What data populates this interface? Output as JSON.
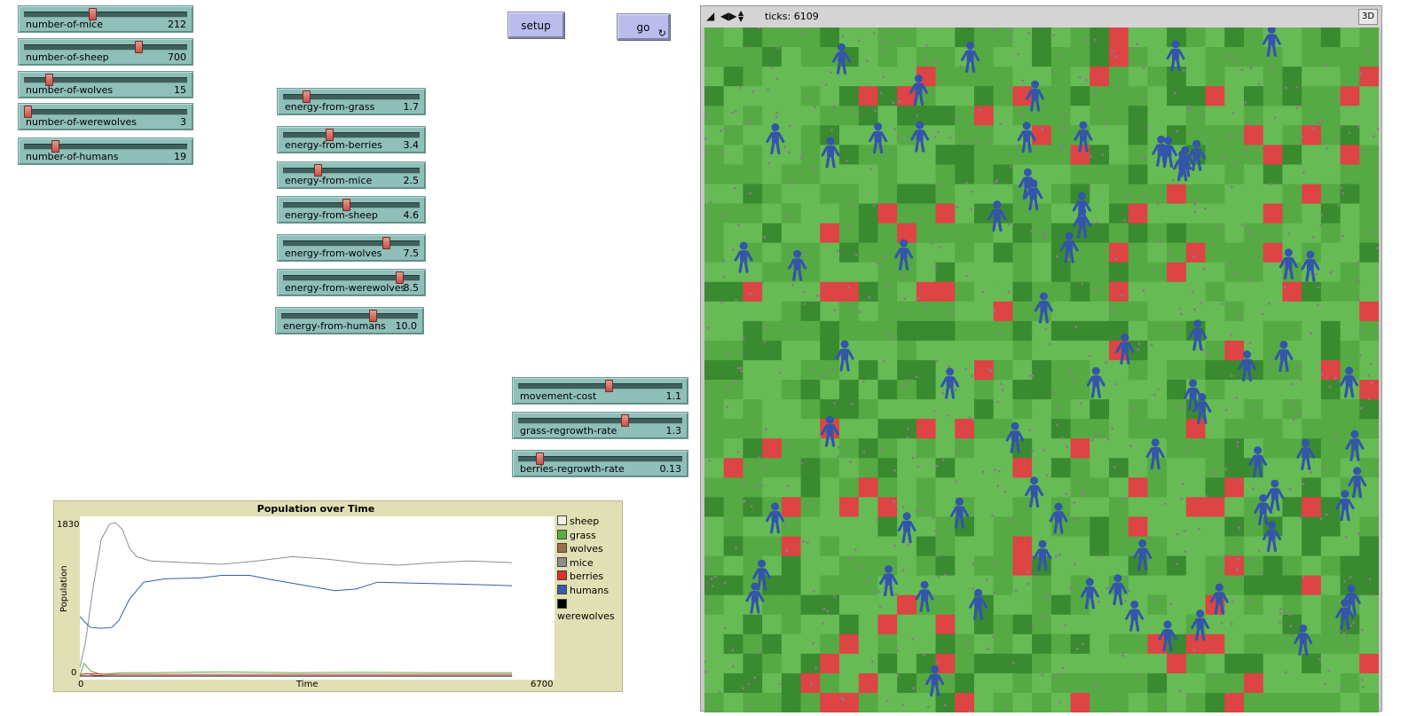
{
  "sliders_left": [
    {
      "name": "number-of-mice",
      "value": "212",
      "frac": 0.42
    },
    {
      "name": "number-of-sheep",
      "value": "700",
      "frac": 0.7
    },
    {
      "name": "number-of-wolves",
      "value": "15",
      "frac": 0.15
    },
    {
      "name": "number-of-werewolves",
      "value": "3",
      "frac": 0.02
    },
    {
      "name": "number-of-humans",
      "value": "19",
      "frac": 0.19
    }
  ],
  "sliders_energy": [
    {
      "name": "energy-from-grass",
      "value": "1.7",
      "frac": 0.17
    },
    {
      "name": "energy-from-berries",
      "value": "3.4",
      "frac": 0.34
    },
    {
      "name": "energy-from-mice",
      "value": "2.5",
      "frac": 0.25
    },
    {
      "name": "energy-from-sheep",
      "value": "4.6",
      "frac": 0.46
    },
    {
      "name": "energy-from-wolves",
      "value": "7.5",
      "frac": 0.75
    },
    {
      "name": "energy-from-werewolves",
      "value": "8.5",
      "frac": 0.85
    },
    {
      "name": "energy-from-humans",
      "value": "10.0",
      "frac": 0.67
    }
  ],
  "sliders_env": [
    {
      "name": "movement-cost",
      "value": "1.1",
      "frac": 0.55
    },
    {
      "name": "grass-regrowth-rate",
      "value": "1.3",
      "frac": 0.65
    },
    {
      "name": "berries-regrowth-rate",
      "value": "0.13",
      "frac": 0.13
    }
  ],
  "buttons": {
    "setup": "setup",
    "go": "go",
    "go_icon": "forever-loop-icon"
  },
  "view": {
    "ticks_label": "ticks: 6109",
    "three_d": "3D",
    "colors": {
      "grass_light": "#66bb55",
      "grass_mid": "#55aa44",
      "grass_dark": "#3a8a30",
      "berries": "#dd4444",
      "humans": "#3355aa",
      "mice": "#8a7a8a"
    }
  },
  "chart_data": {
    "type": "line",
    "title": "Population over Time",
    "xlabel": "Time",
    "ylabel": "Population",
    "xlim": [
      0,
      6700
    ],
    "ylim": [
      0,
      1830
    ],
    "x_tick_labels": [
      "0",
      "6700"
    ],
    "y_tick_labels": [
      "0",
      "1830"
    ],
    "grid": false,
    "legend": "right",
    "series": [
      {
        "name": "sheep",
        "color": "#eeeeee",
        "points": [
          [
            0,
            0
          ],
          [
            6100,
            0
          ]
        ]
      },
      {
        "name": "grass",
        "color": "#59b03c",
        "points": [
          [
            0,
            0
          ],
          [
            60,
            150
          ],
          [
            150,
            60
          ],
          [
            300,
            20
          ],
          [
            600,
            40
          ],
          [
            1000,
            40
          ],
          [
            2000,
            50
          ],
          [
            3000,
            40
          ],
          [
            4000,
            45
          ],
          [
            5000,
            40
          ],
          [
            6100,
            40
          ]
        ]
      },
      {
        "name": "wolves",
        "color": "#9d6e48",
        "points": [
          [
            0,
            20
          ],
          [
            100,
            30
          ],
          [
            200,
            10
          ],
          [
            400,
            0
          ],
          [
            6100,
            0
          ]
        ]
      },
      {
        "name": "mice",
        "color": "#8d8d8d",
        "points": [
          [
            0,
            100
          ],
          [
            80,
            400
          ],
          [
            180,
            1000
          ],
          [
            300,
            1600
          ],
          [
            420,
            1780
          ],
          [
            500,
            1800
          ],
          [
            600,
            1720
          ],
          [
            700,
            1500
          ],
          [
            800,
            1400
          ],
          [
            1000,
            1350
          ],
          [
            1500,
            1330
          ],
          [
            2000,
            1310
          ],
          [
            2500,
            1350
          ],
          [
            3000,
            1400
          ],
          [
            3500,
            1370
          ],
          [
            4000,
            1320
          ],
          [
            4500,
            1300
          ],
          [
            5000,
            1330
          ],
          [
            5500,
            1350
          ],
          [
            6100,
            1330
          ]
        ]
      },
      {
        "name": "berries",
        "color": "#e0302a",
        "points": [
          [
            0,
            20
          ],
          [
            200,
            30
          ],
          [
            400,
            20
          ],
          [
            1000,
            20
          ],
          [
            6100,
            20
          ]
        ]
      },
      {
        "name": "humans",
        "color": "#345da8",
        "points": [
          [
            0,
            700
          ],
          [
            60,
            640
          ],
          [
            150,
            570
          ],
          [
            300,
            560
          ],
          [
            450,
            570
          ],
          [
            550,
            650
          ],
          [
            700,
            900
          ],
          [
            900,
            1100
          ],
          [
            1200,
            1140
          ],
          [
            1700,
            1150
          ],
          [
            2000,
            1180
          ],
          [
            2400,
            1180
          ],
          [
            2700,
            1130
          ],
          [
            3200,
            1060
          ],
          [
            3600,
            1000
          ],
          [
            3900,
            1020
          ],
          [
            4200,
            1100
          ],
          [
            4700,
            1090
          ],
          [
            5200,
            1080
          ],
          [
            5700,
            1070
          ],
          [
            6100,
            1060
          ]
        ]
      },
      {
        "name": "werewolves",
        "color": "#000000",
        "points": [
          [
            0,
            0
          ],
          [
            6100,
            0
          ]
        ]
      }
    ]
  }
}
